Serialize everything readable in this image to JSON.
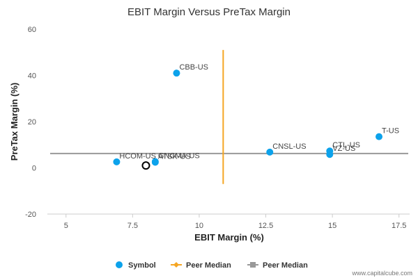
{
  "chart_data": {
    "type": "scatter",
    "title": "EBIT Margin Versus PreTax Margin",
    "xlabel": "EBIT Margin (%)",
    "ylabel": "PreTax Margin (%)",
    "xlim": [
      4.3,
      17.9
    ],
    "ylim": [
      -20,
      60
    ],
    "xticks": [
      5,
      7.5,
      10,
      12.5,
      15,
      17.5
    ],
    "xtick_labels": [
      "5",
      "7.5",
      "10",
      "12.5",
      "15",
      "17.5"
    ],
    "yticks": [
      -20,
      0,
      20,
      40,
      60
    ],
    "ytick_labels": [
      "-20",
      "0",
      "20",
      "40",
      "60"
    ],
    "grid": false,
    "legend_position": "bottom",
    "colors": {
      "symbol": "#0ca2eb",
      "peer_median_x": "#f5a623",
      "peer_median_y": "#999999",
      "axis": "#cccccc",
      "highlight_stroke": "#000000"
    },
    "series": [
      {
        "name": "Symbol",
        "points": [
          {
            "label": "CBB-US",
            "x": 9.15,
            "y": 41
          },
          {
            "label": "T-US",
            "x": 16.75,
            "y": 13.5
          },
          {
            "label": "CTL-US",
            "x": 14.9,
            "y": 7.3
          },
          {
            "label": "VZ-US",
            "x": 14.9,
            "y": 5.8
          },
          {
            "label": "CNSL-US",
            "x": 12.65,
            "y": 6.8
          },
          {
            "label": "HCOM-US",
            "x": 6.9,
            "y": 2.6
          },
          {
            "label": "GNCMA-US",
            "x": 8.35,
            "y": 2.7
          },
          {
            "label": "ATSK-US",
            "x": 8.35,
            "y": 2.4
          }
        ]
      }
    ],
    "highlight_point": {
      "x": 8.0,
      "y": 1.0
    },
    "peer_median_x": {
      "name": "Peer Median",
      "x": 10.9,
      "y_from": -7,
      "y_to": 51
    },
    "peer_median_y": {
      "name": "Peer Median",
      "y": 6.2
    },
    "legend": [
      "Symbol",
      "Peer Median",
      "Peer Median"
    ],
    "watermark": "www.capitalcube.com"
  }
}
